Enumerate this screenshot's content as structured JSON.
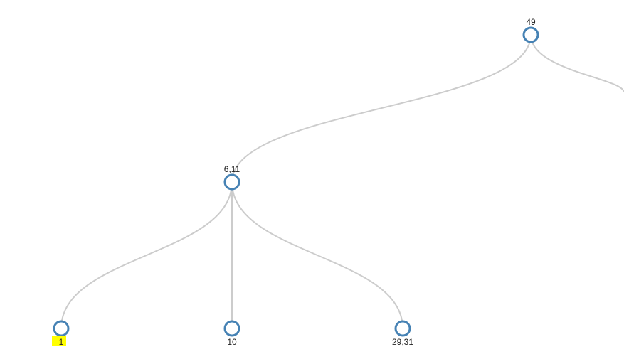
{
  "tree": {
    "root": {
      "label": "49",
      "children": [
        {
          "label": "6,11",
          "children": [
            {
              "label": "1",
              "highlighted": true
            },
            {
              "label": "10"
            },
            {
              "label": "29,31"
            }
          ]
        }
      ]
    }
  },
  "colors": {
    "link": "#cccccc",
    "node_stroke": "#4682b4",
    "node_fill": "#ffffff",
    "highlight": "#ffff00",
    "label": "#222222"
  }
}
